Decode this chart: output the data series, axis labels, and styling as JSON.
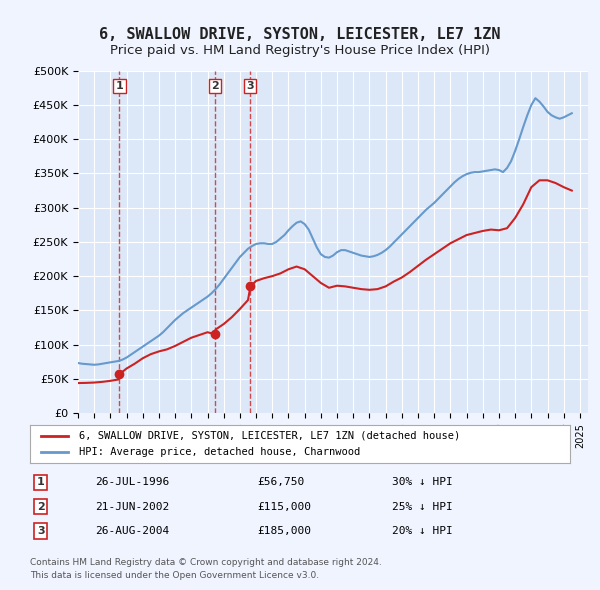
{
  "title": "6, SWALLOW DRIVE, SYSTON, LEICESTER, LE7 1ZN",
  "subtitle": "Price paid vs. HM Land Registry's House Price Index (HPI)",
  "ylabel": "",
  "ylim": [
    0,
    500000
  ],
  "yticks": [
    0,
    50000,
    100000,
    150000,
    200000,
    250000,
    300000,
    350000,
    400000,
    450000,
    500000
  ],
  "ytick_labels": [
    "£0",
    "£50K",
    "£100K",
    "£150K",
    "£200K",
    "£250K",
    "£300K",
    "£350K",
    "£400K",
    "£450K",
    "£500K"
  ],
  "xlim_start": 1994.0,
  "xlim_end": 2025.5,
  "background_color": "#f0f4ff",
  "plot_bg_color": "#dce8f8",
  "grid_color": "#ffffff",
  "hpi_color": "#6699cc",
  "price_color": "#cc2222",
  "marker_color": "#cc2222",
  "vline_color": "#cc2222",
  "title_fontsize": 11,
  "subtitle_fontsize": 9.5,
  "transactions": [
    {
      "id": 1,
      "date": "26-JUL-1996",
      "year": 1996.56,
      "price": 56750,
      "hpi_pct": "30% ↓ HPI"
    },
    {
      "id": 2,
      "date": "21-JUN-2002",
      "year": 2002.47,
      "price": 115000,
      "hpi_pct": "25% ↓ HPI"
    },
    {
      "id": 3,
      "date": "26-AUG-2004",
      "year": 2004.65,
      "price": 185000,
      "hpi_pct": "20% ↓ HPI"
    }
  ],
  "legend_label_price": "6, SWALLOW DRIVE, SYSTON, LEICESTER, LE7 1ZN (detached house)",
  "legend_label_hpi": "HPI: Average price, detached house, Charnwood",
  "footer1": "Contains HM Land Registry data © Crown copyright and database right 2024.",
  "footer2": "This data is licensed under the Open Government Licence v3.0.",
  "hpi_data_x": [
    1994.0,
    1994.25,
    1994.5,
    1994.75,
    1995.0,
    1995.25,
    1995.5,
    1995.75,
    1996.0,
    1996.25,
    1996.5,
    1996.75,
    1997.0,
    1997.25,
    1997.5,
    1997.75,
    1998.0,
    1998.25,
    1998.5,
    1998.75,
    1999.0,
    1999.25,
    1999.5,
    1999.75,
    2000.0,
    2000.25,
    2000.5,
    2000.75,
    2001.0,
    2001.25,
    2001.5,
    2001.75,
    2002.0,
    2002.25,
    2002.5,
    2002.75,
    2003.0,
    2003.25,
    2003.5,
    2003.75,
    2004.0,
    2004.25,
    2004.5,
    2004.75,
    2005.0,
    2005.25,
    2005.5,
    2005.75,
    2006.0,
    2006.25,
    2006.5,
    2006.75,
    2007.0,
    2007.25,
    2007.5,
    2007.75,
    2008.0,
    2008.25,
    2008.5,
    2008.75,
    2009.0,
    2009.25,
    2009.5,
    2009.75,
    2010.0,
    2010.25,
    2010.5,
    2010.75,
    2011.0,
    2011.25,
    2011.5,
    2011.75,
    2012.0,
    2012.25,
    2012.5,
    2012.75,
    2013.0,
    2013.25,
    2013.5,
    2013.75,
    2014.0,
    2014.25,
    2014.5,
    2014.75,
    2015.0,
    2015.25,
    2015.5,
    2015.75,
    2016.0,
    2016.25,
    2016.5,
    2016.75,
    2017.0,
    2017.25,
    2017.5,
    2017.75,
    2018.0,
    2018.25,
    2018.5,
    2018.75,
    2019.0,
    2019.25,
    2019.5,
    2019.75,
    2020.0,
    2020.25,
    2020.5,
    2020.75,
    2021.0,
    2021.25,
    2021.5,
    2021.75,
    2022.0,
    2022.25,
    2022.5,
    2022.75,
    2023.0,
    2023.25,
    2023.5,
    2023.75,
    2024.0,
    2024.25,
    2024.5
  ],
  "hpi_data_y": [
    73000,
    72000,
    71500,
    71000,
    70500,
    71000,
    72000,
    73000,
    74000,
    75000,
    76000,
    78000,
    81000,
    85000,
    89000,
    93000,
    97000,
    101000,
    105000,
    109000,
    113000,
    118000,
    124000,
    130000,
    136000,
    141000,
    146000,
    150000,
    154000,
    158000,
    162000,
    166000,
    170000,
    175000,
    181000,
    188000,
    196000,
    204000,
    212000,
    220000,
    228000,
    234000,
    240000,
    244000,
    247000,
    248000,
    248000,
    247000,
    247000,
    250000,
    255000,
    260000,
    267000,
    273000,
    278000,
    280000,
    276000,
    268000,
    255000,
    242000,
    232000,
    228000,
    227000,
    230000,
    235000,
    238000,
    238000,
    236000,
    234000,
    232000,
    230000,
    229000,
    228000,
    229000,
    231000,
    234000,
    238000,
    243000,
    249000,
    255000,
    261000,
    267000,
    273000,
    279000,
    285000,
    291000,
    297000,
    302000,
    307000,
    313000,
    319000,
    325000,
    331000,
    337000,
    342000,
    346000,
    349000,
    351000,
    352000,
    352000,
    353000,
    354000,
    355000,
    356000,
    355000,
    352000,
    358000,
    368000,
    383000,
    400000,
    418000,
    435000,
    450000,
    460000,
    455000,
    448000,
    440000,
    435000,
    432000,
    430000,
    432000,
    435000,
    438000
  ],
  "price_data_x": [
    1994.0,
    1994.5,
    1995.0,
    1995.5,
    1996.0,
    1996.5,
    1996.56,
    1997.0,
    1997.5,
    1998.0,
    1998.5,
    1999.0,
    1999.5,
    2000.0,
    2000.5,
    2001.0,
    2001.5,
    2002.0,
    2002.47,
    2002.5,
    2003.0,
    2003.5,
    2004.0,
    2004.5,
    2004.65,
    2005.0,
    2005.5,
    2006.0,
    2006.5,
    2007.0,
    2007.5,
    2008.0,
    2008.5,
    2009.0,
    2009.5,
    2010.0,
    2010.5,
    2011.0,
    2011.5,
    2012.0,
    2012.5,
    2013.0,
    2013.5,
    2014.0,
    2014.5,
    2015.0,
    2015.5,
    2016.0,
    2016.5,
    2017.0,
    2017.5,
    2018.0,
    2018.5,
    2019.0,
    2019.5,
    2020.0,
    2020.5,
    2021.0,
    2021.5,
    2022.0,
    2022.5,
    2023.0,
    2023.5,
    2024.0,
    2024.5
  ],
  "price_data_y": [
    43750,
    44000,
    44500,
    45500,
    47000,
    49000,
    56750,
    65000,
    72000,
    80000,
    86000,
    90000,
    93000,
    98000,
    104000,
    110000,
    114000,
    118000,
    115000,
    122000,
    130000,
    140000,
    152000,
    165000,
    185000,
    193000,
    197000,
    200000,
    204000,
    210000,
    214000,
    210000,
    200000,
    190000,
    183000,
    186000,
    185000,
    183000,
    181000,
    180000,
    181000,
    185000,
    192000,
    198000,
    206000,
    215000,
    224000,
    232000,
    240000,
    248000,
    254000,
    260000,
    263000,
    266000,
    268000,
    267000,
    270000,
    285000,
    305000,
    330000,
    340000,
    340000,
    336000,
    330000,
    325000
  ]
}
